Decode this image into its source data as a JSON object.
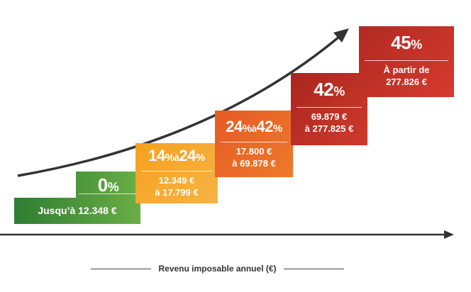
{
  "title_axis": "Revenu imposable annuel (€)",
  "brackets": [
    {
      "rate": "0",
      "rate_unit": "%",
      "range": "Jusqu’à 12.348 €",
      "color": "#4a9a3a"
    },
    {
      "rate_from": "14",
      "rate_to": "24",
      "unit": "%",
      "sep": "à",
      "range_line1": "12.349 €",
      "range_line2": "à 17.799 €",
      "color": "#f2a42a"
    },
    {
      "rate_from": "24",
      "rate_to": "42",
      "unit": "%",
      "sep": "à",
      "range_line1": "17.800 €",
      "range_line2": "à 69.878 €",
      "color": "#e8672a"
    },
    {
      "rate": "42",
      "rate_unit": "%",
      "range_line1": "69.879 €",
      "range_line2": "à 277.825 €",
      "color": "#c0302a"
    },
    {
      "rate": "45",
      "rate_unit": "%",
      "range_line1": "À partir de",
      "range_line2": "277.826 €",
      "color": "#c8322b"
    }
  ]
}
